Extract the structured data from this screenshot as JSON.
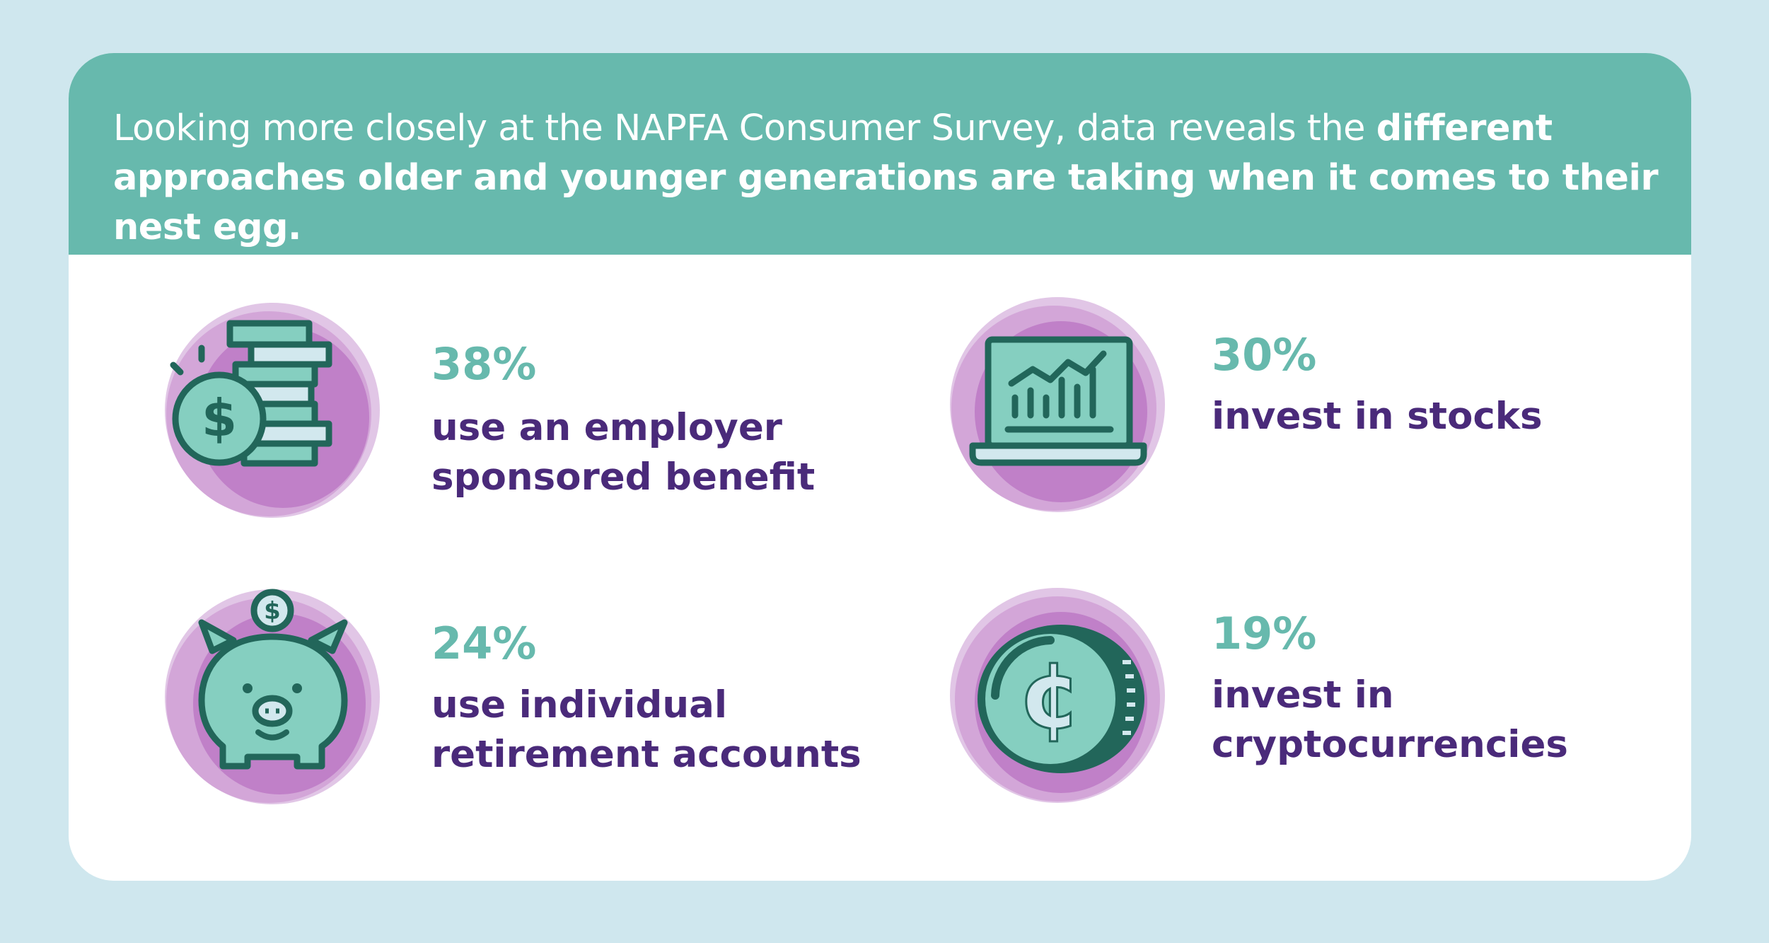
{
  "header": {
    "intro": "Looking more closely at the NAPFA Consumer Survey, data reveals the ",
    "emphasis": "different approaches older and younger generations are taking when it comes to their nest egg."
  },
  "stats": [
    {
      "percent": "38%",
      "line1": "use an employer",
      "line2": "sponsored benefit",
      "icon": "coin-stack-dollar-icon"
    },
    {
      "percent": "30%",
      "line1": "invest in stocks",
      "line2": "",
      "icon": "laptop-chart-icon"
    },
    {
      "percent": "24%",
      "line1": "use individual",
      "line2": "retirement accounts",
      "icon": "piggy-bank-icon"
    },
    {
      "percent": "19%",
      "line1": "invest in",
      "line2": "cryptocurrencies",
      "icon": "crypto-coin-icon"
    }
  ],
  "colors": {
    "background": "#cfe7ee",
    "header": "#67b9ad",
    "percent": "#67b9ad",
    "label": "#4a2a7a",
    "icon_dark": "#22665a",
    "icon_fill": "#85cfc0",
    "icon_light": "#d2e8ee",
    "blob": "#c080c8"
  }
}
